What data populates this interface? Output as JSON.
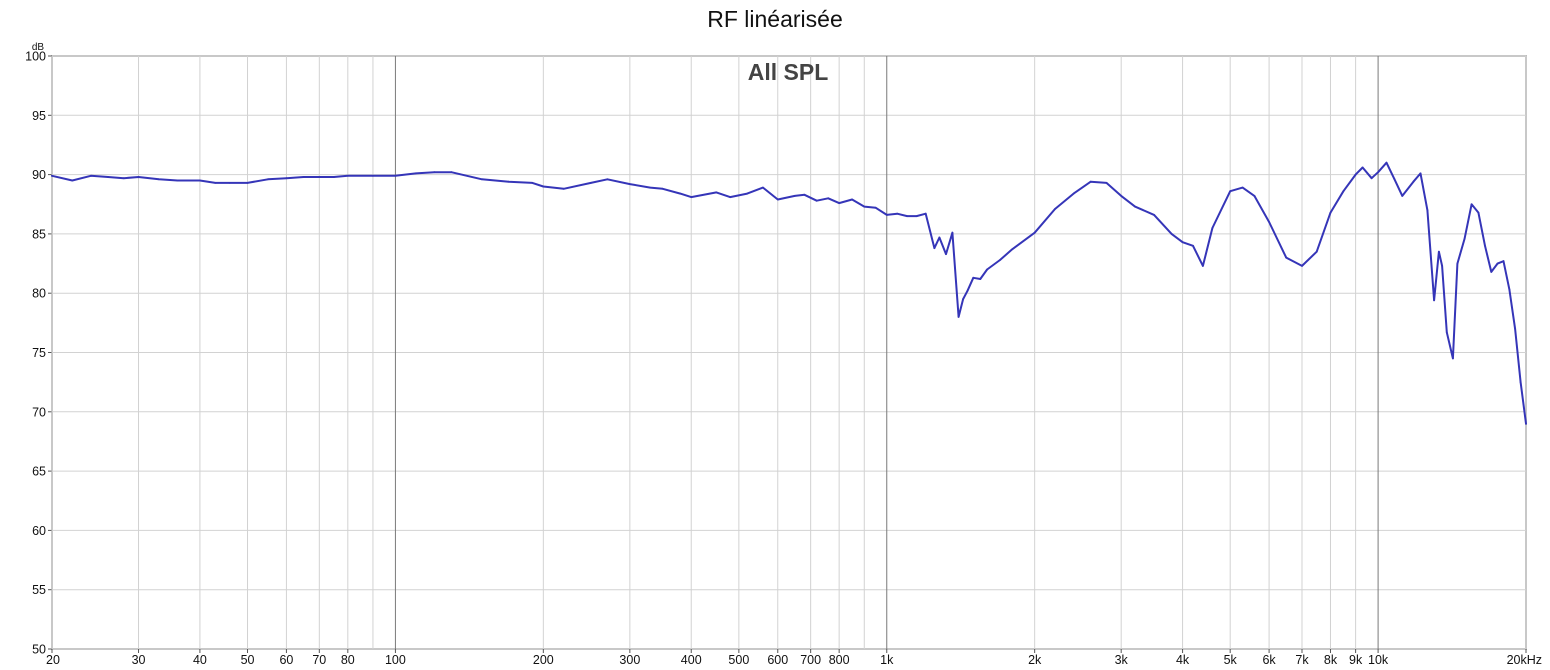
{
  "chart_data": {
    "type": "line",
    "title": "RF linéarisée",
    "subtitle": "All SPL",
    "ylabel": "dB",
    "xunit": "kHz",
    "xscale": "log",
    "xlim": [
      20,
      20000
    ],
    "ylim": [
      50,
      100
    ],
    "grid": true,
    "x_ticks": [
      {
        "value": 20,
        "label": "20"
      },
      {
        "value": 30,
        "label": "30"
      },
      {
        "value": 40,
        "label": "40"
      },
      {
        "value": 50,
        "label": "50"
      },
      {
        "value": 60,
        "label": "60"
      },
      {
        "value": 70,
        "label": "70"
      },
      {
        "value": 80,
        "label": "80"
      },
      {
        "value": 100,
        "label": "100"
      },
      {
        "value": 200,
        "label": "200"
      },
      {
        "value": 300,
        "label": "300"
      },
      {
        "value": 400,
        "label": "400"
      },
      {
        "value": 500,
        "label": "500"
      },
      {
        "value": 600,
        "label": "600"
      },
      {
        "value": 700,
        "label": "700"
      },
      {
        "value": 800,
        "label": "800"
      },
      {
        "value": 1000,
        "label": "1k"
      },
      {
        "value": 2000,
        "label": "2k"
      },
      {
        "value": 3000,
        "label": "3k"
      },
      {
        "value": 4000,
        "label": "4k"
      },
      {
        "value": 5000,
        "label": "5k"
      },
      {
        "value": 6000,
        "label": "6k"
      },
      {
        "value": 7000,
        "label": "7k"
      },
      {
        "value": 8000,
        "label": "8k"
      },
      {
        "value": 9000,
        "label": "9k"
      },
      {
        "value": 10000,
        "label": "10k"
      },
      {
        "value": 20000,
        "label": "20kHz"
      }
    ],
    "x_gridlines": [
      20,
      30,
      40,
      50,
      60,
      70,
      80,
      90,
      100,
      200,
      300,
      400,
      500,
      600,
      700,
      800,
      900,
      1000,
      2000,
      3000,
      4000,
      5000,
      6000,
      7000,
      8000,
      9000,
      10000,
      20000
    ],
    "x_major_gridlines": [
      100,
      1000,
      10000
    ],
    "y_ticks": [
      50,
      55,
      60,
      65,
      70,
      75,
      80,
      85,
      90,
      95,
      100
    ],
    "series": [
      {
        "color": "#3535b8",
        "x": [
          20,
          22,
          24,
          26,
          28,
          30,
          33,
          36,
          40,
          43,
          46,
          50,
          55,
          60,
          65,
          70,
          75,
          80,
          90,
          100,
          110,
          120,
          130,
          150,
          170,
          190,
          200,
          220,
          250,
          270,
          300,
          330,
          350,
          380,
          400,
          450,
          480,
          520,
          560,
          600,
          650,
          680,
          720,
          760,
          800,
          850,
          900,
          950,
          1000,
          1050,
          1100,
          1150,
          1200,
          1250,
          1280,
          1320,
          1360,
          1400,
          1430,
          1460,
          1500,
          1550,
          1600,
          1700,
          1800,
          2000,
          2200,
          2400,
          2600,
          2800,
          3000,
          3200,
          3500,
          3800,
          4000,
          4200,
          4400,
          4600,
          5000,
          5300,
          5600,
          6000,
          6500,
          7000,
          7500,
          8000,
          8500,
          9000,
          9300,
          9700,
          10000,
          10400,
          10800,
          11200,
          11800,
          12200,
          12600,
          13000,
          13300,
          13500,
          13800,
          14200,
          14500,
          15000,
          15500,
          16000,
          16500,
          17000,
          17500,
          18000,
          18500,
          19000,
          19500,
          20000
        ],
        "y": [
          89.9,
          89.5,
          89.9,
          89.8,
          89.7,
          89.8,
          89.6,
          89.5,
          89.5,
          89.3,
          89.3,
          89.3,
          89.6,
          89.7,
          89.8,
          89.8,
          89.8,
          89.9,
          89.9,
          89.9,
          90.1,
          90.2,
          90.2,
          89.6,
          89.4,
          89.3,
          89.0,
          88.8,
          89.3,
          89.6,
          89.2,
          88.9,
          88.8,
          88.4,
          88.1,
          88.5,
          88.1,
          88.4,
          88.9,
          87.9,
          88.2,
          88.3,
          87.8,
          88.0,
          87.6,
          87.9,
          87.3,
          87.2,
          86.6,
          86.7,
          86.5,
          86.5,
          86.7,
          83.8,
          84.7,
          83.3,
          85.1,
          78.0,
          79.5,
          80.2,
          81.3,
          81.2,
          82.0,
          82.8,
          83.7,
          85.1,
          87.1,
          88.4,
          89.4,
          89.3,
          88.2,
          87.3,
          86.6,
          85.0,
          84.3,
          84.0,
          82.3,
          85.5,
          88.6,
          88.9,
          88.2,
          86.0,
          83.0,
          82.3,
          83.5,
          86.8,
          88.6,
          90.0,
          90.6,
          89.7,
          90.2,
          91.0,
          89.6,
          88.2,
          89.4,
          90.1,
          87.0,
          79.4,
          83.5,
          82.3,
          76.7,
          74.5,
          82.5,
          84.6,
          87.5,
          86.8,
          84.0,
          81.8,
          82.5,
          82.7,
          80.3,
          77.0,
          72.5,
          69.0
        ]
      }
    ]
  }
}
